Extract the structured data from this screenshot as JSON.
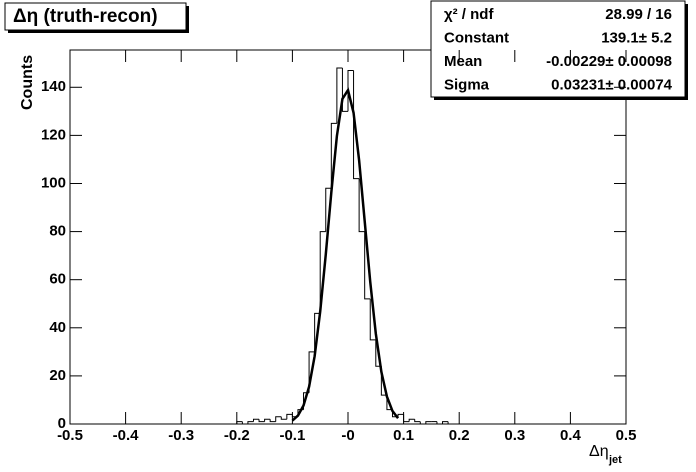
{
  "chart_data": {
    "type": "histogram",
    "title": "Δη (truth-recon)",
    "ylabel": "Counts",
    "xlabel": {
      "main": "Δη",
      "sub": "jet"
    },
    "bins": [
      -0.5,
      -0.49,
      -0.48,
      -0.47,
      -0.46,
      -0.45,
      -0.44,
      -0.43,
      -0.42,
      -0.41,
      -0.4,
      -0.39,
      -0.38,
      -0.37,
      -0.36,
      -0.35,
      -0.34,
      -0.33,
      -0.32,
      -0.31,
      -0.3,
      -0.29,
      -0.28,
      -0.27,
      -0.26,
      -0.25,
      -0.24,
      -0.23,
      -0.22,
      -0.21,
      -0.2,
      -0.19,
      -0.18,
      -0.17,
      -0.16,
      -0.15,
      -0.14,
      -0.13,
      -0.12,
      -0.11,
      -0.1,
      -0.09,
      -0.08,
      -0.07,
      -0.06,
      -0.05,
      -0.04,
      -0.03,
      -0.02,
      -0.01,
      0,
      0.01,
      0.02,
      0.03,
      0.04,
      0.05,
      0.06,
      0.07,
      0.08,
      0.09,
      0.1,
      0.11,
      0.12,
      0.13,
      0.14,
      0.15,
      0.16,
      0.17,
      0.18,
      0.19,
      0.2,
      0.21,
      0.22,
      0.23,
      0.24,
      0.25,
      0.26,
      0.27,
      0.28,
      0.29,
      0.3,
      0.31,
      0.32,
      0.33,
      0.34,
      0.35,
      0.36,
      0.37,
      0.38,
      0.39,
      0.4,
      0.41,
      0.42,
      0.43,
      0.44,
      0.45,
      0.46,
      0.47,
      0.48,
      0.49,
      0.5
    ],
    "values": [
      0,
      0,
      0,
      0,
      0,
      0,
      0,
      0,
      0,
      0,
      0,
      0,
      0,
      0,
      0,
      0,
      0,
      0,
      0,
      0,
      0,
      0,
      0,
      0,
      0,
      0,
      0,
      0,
      0,
      0,
      1,
      0,
      1,
      2,
      1,
      2,
      1,
      3,
      2,
      4,
      3,
      6,
      13,
      30,
      46,
      80,
      98,
      125,
      148,
      130,
      147,
      102,
      80,
      52,
      35,
      24,
      12,
      6,
      3,
      4,
      1,
      2,
      1,
      0,
      1,
      1,
      0,
      1,
      0,
      0,
      0,
      0,
      0,
      0,
      0,
      0,
      0,
      0,
      0,
      0,
      0,
      0,
      0,
      0,
      0,
      0,
      0,
      0,
      0,
      0,
      0,
      0,
      0,
      0,
      0,
      0,
      0,
      0,
      0,
      0
    ],
    "color": "#000000",
    "fit": {
      "x": [
        -0.1,
        -0.09,
        -0.08,
        -0.07,
        -0.06,
        -0.05,
        -0.04,
        -0.03,
        -0.02,
        -0.01,
        0,
        0.01,
        0.02,
        0.03,
        0.04,
        0.05,
        0.06,
        0.07,
        0.08,
        0.09
      ],
      "values": [
        1.4,
        3.5,
        7.7,
        15.5,
        28.2,
        46.8,
        70.4,
        96.3,
        119.7,
        135.2,
        138.8,
        129.4,
        109.6,
        84.4,
        59.1,
        37.6,
        21.7,
        11.4,
        5.4,
        2.4
      ],
      "color": "#000000"
    },
    "xlim": [
      -0.5,
      0.5
    ],
    "xticks": [
      -0.5,
      -0.4,
      -0.3,
      -0.2,
      -0.1,
      {
        "value": 0,
        "label": "-0"
      },
      0.1,
      0.2,
      0.3,
      0.4,
      0.5
    ],
    "ylim": [
      0,
      155.5
    ],
    "yticks": [
      0,
      20,
      40,
      60,
      80,
      100,
      120,
      140
    ],
    "stats": [
      {
        "label": "χ² / ndf",
        "value": "28.99 / 16"
      },
      {
        "label": "Constant",
        "value": "139.1± 5.2"
      },
      {
        "label": "Mean",
        "value": "-0.00229± 0.00098"
      },
      {
        "label": "Sigma",
        "value": "0.03231± 0.00074"
      }
    ]
  }
}
